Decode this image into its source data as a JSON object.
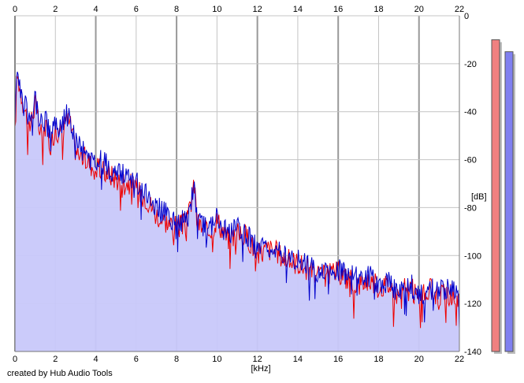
{
  "credit": "created by Hub Audio Tools",
  "chart_data": {
    "type": "area",
    "title": "",
    "xlabel": "[kHz]",
    "ylabel": "[dB]",
    "xlim": [
      0,
      22
    ],
    "ylim": [
      -140,
      0
    ],
    "x_ticks": [
      "0",
      "2",
      "4",
      "6",
      "8",
      "10",
      "12",
      "14",
      "16",
      "18",
      "20",
      "22"
    ],
    "y_ticks": [
      "0",
      "-20",
      "-40",
      "-60",
      "-80",
      "-100",
      "-120",
      "-140"
    ],
    "grid": true,
    "legend": "none",
    "colors": {
      "left_channel": "#ee0000",
      "right_channel": "#0000cc",
      "fill": "#c8c8fa",
      "grid_major": "#999999",
      "grid_minor": "#c4c4c4",
      "left_meter": "#f08080",
      "right_meter": "#8080f0"
    },
    "x": [
      0,
      0.1,
      0.25,
      0.5,
      0.75,
      1,
      1.25,
      1.5,
      1.75,
      2,
      2.25,
      2.5,
      2.75,
      3,
      3.5,
      4,
      4.5,
      5,
      5.5,
      6,
      6.5,
      7,
      7.5,
      8,
      8.5,
      8.9,
      9,
      9.5,
      10,
      10.5,
      11,
      11.5,
      12,
      12.5,
      13,
      13.5,
      14,
      14.5,
      15,
      15.5,
      16,
      16.5,
      17,
      17.5,
      18,
      18.5,
      19,
      19.5,
      20,
      20.5,
      21,
      21.5,
      22
    ],
    "series": [
      {
        "values": [
          -50,
          -24,
          -30,
          -40,
          -46,
          -36,
          -50,
          -46,
          -54,
          -47,
          -50,
          -42,
          -46,
          -56,
          -60,
          -64,
          -65,
          -68,
          -69,
          -72,
          -76,
          -83,
          -86,
          -88,
          -87,
          -70,
          -86,
          -91,
          -85,
          -93,
          -91,
          -92,
          -100,
          -97,
          -99,
          -102,
          -103,
          -106,
          -109,
          -108,
          -107,
          -110,
          -112,
          -110,
          -113,
          -112,
          -117,
          -112,
          -119,
          -114,
          -117,
          -116,
          -119
        ]
      },
      {
        "values": [
          -34,
          -23,
          -29,
          -38,
          -43,
          -34,
          -46,
          -44,
          -50,
          -45,
          -47,
          -41,
          -44,
          -53,
          -57,
          -60,
          -62,
          -66,
          -67,
          -70,
          -74,
          -80,
          -83,
          -86,
          -86,
          -68,
          -85,
          -89,
          -84,
          -91,
          -89,
          -91,
          -98,
          -96,
          -98,
          -100,
          -101,
          -104,
          -107,
          -107,
          -106,
          -108,
          -110,
          -109,
          -111,
          -111,
          -115,
          -111,
          -117,
          -113,
          -115,
          -114,
          -117
        ]
      }
    ],
    "meters": {
      "left": -10,
      "right": -15
    }
  }
}
